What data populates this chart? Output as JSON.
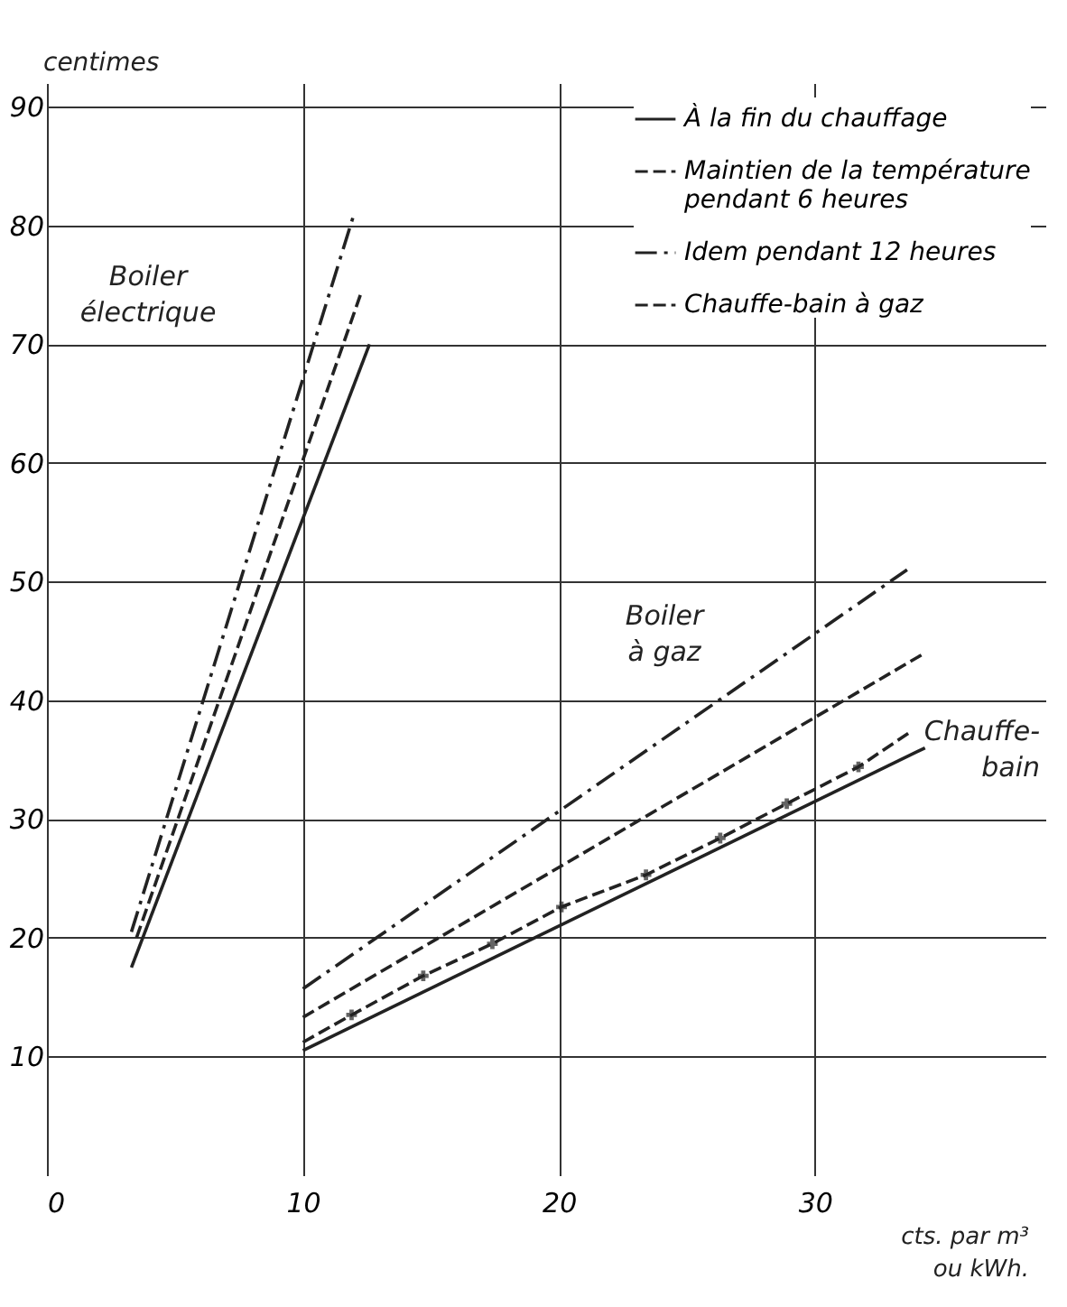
{
  "chart_data": {
    "type": "line",
    "ylabel": "centimes",
    "xlabel": "cts. par m³\nou kWh.",
    "xlim": [
      0,
      39
    ],
    "xticks": [
      0,
      10,
      20,
      30
    ],
    "ylim": [
      0,
      92
    ],
    "yticks": [
      10,
      20,
      30,
      40,
      50,
      60,
      70,
      80,
      90
    ],
    "grid": true,
    "legend": "top right",
    "annotations": [
      "Boiler\nélectrique",
      "Boiler\nà gaz",
      "Chauffe-\nbain"
    ],
    "series": [
      {
        "name": "À la fin du chauffage",
        "color": "#222222",
        "line_style": "solid",
        "x": [
          3.3,
          12.6
        ],
        "values": [
          17.5,
          70
        ]
      },
      {
        "name": "Maintien de la température\npendant 6 heures",
        "color": "#222222",
        "line_style": "dashed",
        "x": [
          3.5,
          12.3
        ],
        "values": [
          20,
          74.5
        ]
      },
      {
        "name": "Idem pendant 12 heures",
        "color": "#222222",
        "line_style": "dashdot",
        "x": [
          3.3,
          12.0
        ],
        "values": [
          20.5,
          81
        ]
      },
      {
        "name": "Chauffe-bain à gaz",
        "color": "#222222",
        "line_style": "dashed",
        "marker": "cross",
        "x": [
          10,
          11.9,
          14.7,
          17.4,
          20.1,
          23.4,
          26.3,
          28.9,
          31.7,
          33.7
        ],
        "values": [
          11.2,
          13.5,
          16.8,
          19.5,
          22.6,
          25.3,
          28.4,
          31.3,
          34.4,
          37.3
        ]
      },
      {
        "color": "#222222",
        "line_style": "solid",
        "x": [
          10,
          34.3
        ],
        "values": [
          10.5,
          36
        ]
      },
      {
        "color": "#222222",
        "line_style": "dashed",
        "x": [
          10,
          34.3
        ],
        "values": [
          13.3,
          44
        ]
      },
      {
        "color": "#222222",
        "line_style": "dashdot",
        "x": [
          10,
          33.6
        ],
        "values": [
          15.7,
          51
        ]
      }
    ]
  }
}
